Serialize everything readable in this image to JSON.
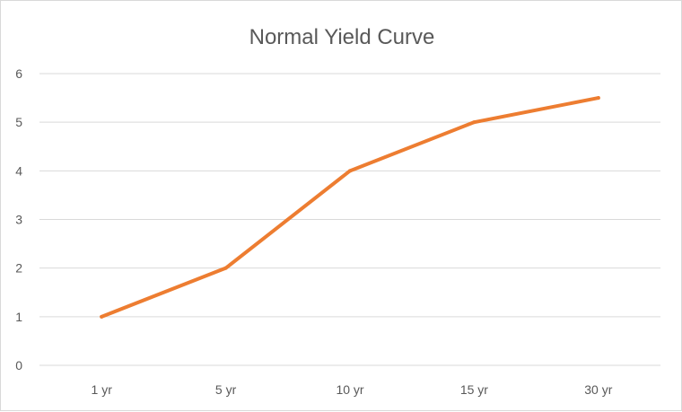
{
  "chart_data": {
    "type": "line",
    "title": "Normal Yield Curve",
    "xlabel": "",
    "ylabel": "",
    "categories": [
      "1 yr",
      "5 yr",
      "10 yr",
      "15 yr",
      "30 yr"
    ],
    "series": [
      {
        "values": [
          1,
          2,
          4,
          5,
          5.5
        ]
      }
    ],
    "ylim": [
      0,
      6
    ],
    "yticks": [
      "0",
      "1",
      "2",
      "3",
      "4",
      "5",
      "6"
    ],
    "grid": true,
    "legend": "none",
    "line_color": "#ED7D31"
  }
}
